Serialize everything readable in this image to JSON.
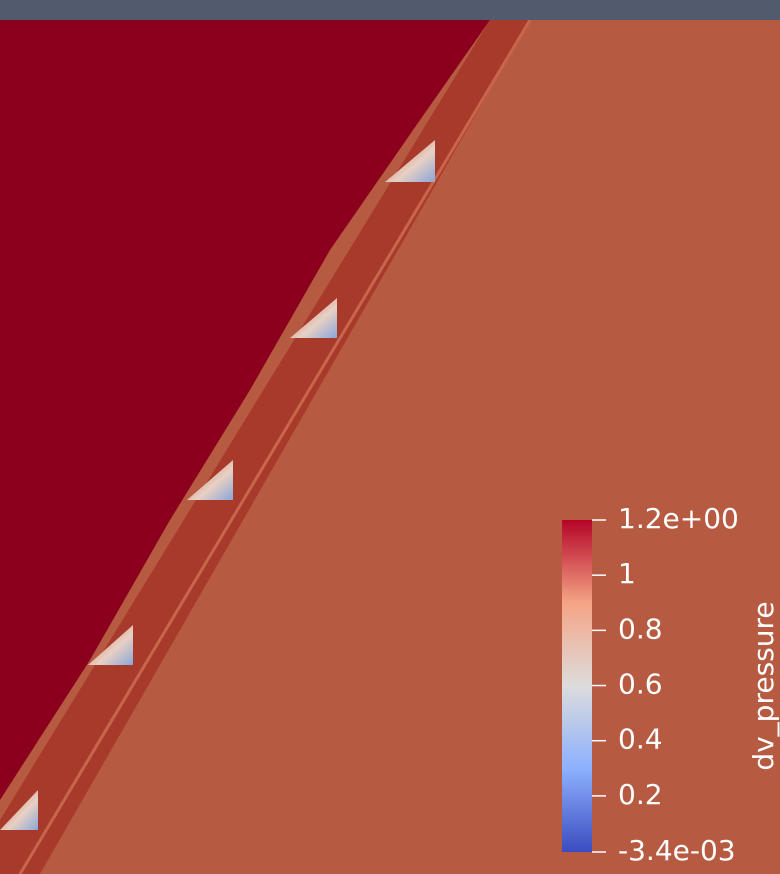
{
  "colorbar": {
    "title": "dv_pressure",
    "range": [
      -0.0034,
      1.2
    ],
    "ticks": [
      {
        "value": 1.2,
        "label": "1.2e+00"
      },
      1,
      0.8,
      0.6,
      0.4,
      0.2,
      {
        "value": -0.0034,
        "label": "-3.4e-03"
      }
    ]
  }
}
